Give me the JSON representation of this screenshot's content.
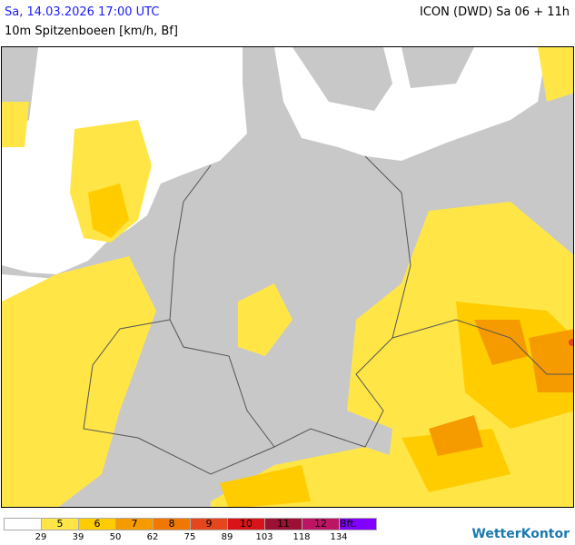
{
  "header": {
    "datetime": "Sa, 14.03.2026 17:00 UTC",
    "parameter": "10m Spitzenboeen [km/h, Bf]",
    "model": "ICON (DWD) Sa 06 + 11h"
  },
  "legend": {
    "classes": [
      {
        "label": "",
        "color": "#ffffff"
      },
      {
        "label": "5",
        "color": "#ffe646"
      },
      {
        "label": "6",
        "color": "#ffcc00"
      },
      {
        "label": "7",
        "color": "#f59b00"
      },
      {
        "label": "8",
        "color": "#f07800"
      },
      {
        "label": "9",
        "color": "#e6461e"
      },
      {
        "label": "10",
        "color": "#d81418"
      },
      {
        "label": "11",
        "color": "#9b1033"
      },
      {
        "label": "12",
        "color": "#be1464"
      },
      {
        "label": "Bft.",
        "color": "#8200ff"
      }
    ],
    "thresholds": [
      "29",
      "39",
      "50",
      "62",
      "75",
      "89",
      "103",
      "118",
      "134"
    ]
  },
  "colors": {
    "land": "#c8c8c8",
    "sea": "#ffffff",
    "borders": "#555555"
  },
  "logo": "WetterKontor"
}
